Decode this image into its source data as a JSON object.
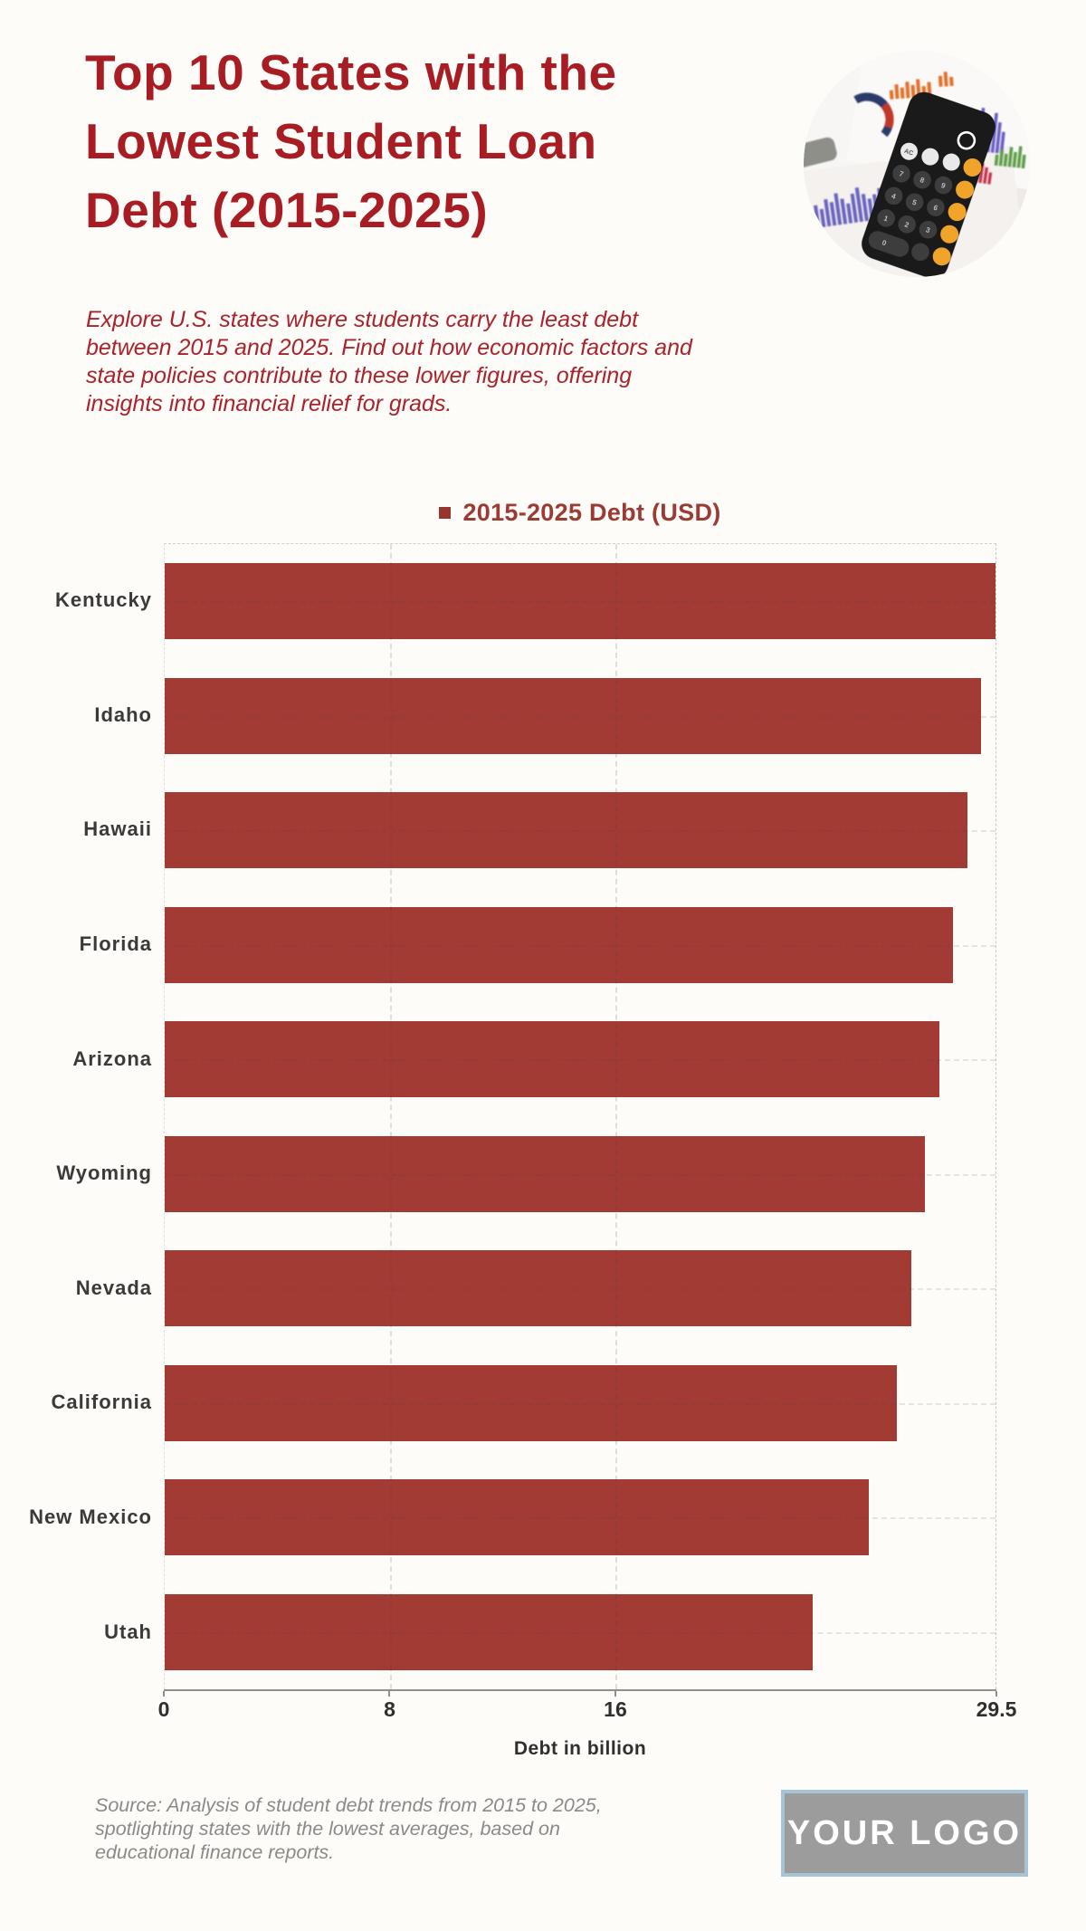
{
  "header": {
    "title_lines": [
      "Top 10 States with the",
      "Lowest Student Loan",
      "Debt (2015-2025)"
    ],
    "subtitle_lines": [
      "Explore U.S. states where students carry the least debt",
      "between 2015 and 2025. Find out how economic factors and",
      "state policies contribute to these lower figures, offering",
      "insights into financial relief for grads."
    ]
  },
  "chart_data": {
    "type": "bar",
    "orientation": "horizontal",
    "legend": [
      "2015-2025 Debt (USD)"
    ],
    "categories": [
      "Kentucky",
      "Idaho",
      "Hawaii",
      "Florida",
      "Arizona",
      "Wyoming",
      "Nevada",
      "California",
      "New Mexico",
      "Utah"
    ],
    "values": [
      29.5,
      29,
      28.5,
      28,
      27.5,
      27,
      26.5,
      26,
      25,
      23
    ],
    "xlabel": "Debt in billion",
    "ylabel": "",
    "xlim": [
      0,
      29.5
    ],
    "xticks": [
      0,
      8,
      16,
      29.5
    ],
    "grid": "dashed vertical at 8 and 16, dashed horizontal per row, dashed plot border top/right",
    "legend_position": "top-center",
    "bar_color": "#A23B34"
  },
  "footer": {
    "source_lines": [
      "Source: Analysis of student debt trends from 2015 to 2025,",
      "spotlighting states with the lowest averages, based on",
      "educational finance reports."
    ],
    "logo_text": "YOUR LOGO"
  },
  "colors": {
    "background": "#FDFCF8",
    "title_red": "#A81D24",
    "subtitle_red": "#AA222B",
    "legend_red": "#9C3B34",
    "bar_red": "#A23B34",
    "label_dark": "#3A3A3A",
    "axis_gray": "#8F8F8F",
    "source_gray": "#8A8A8A",
    "logo_bg": "#9C9C9C",
    "logo_border": "#A7C3D6"
  }
}
